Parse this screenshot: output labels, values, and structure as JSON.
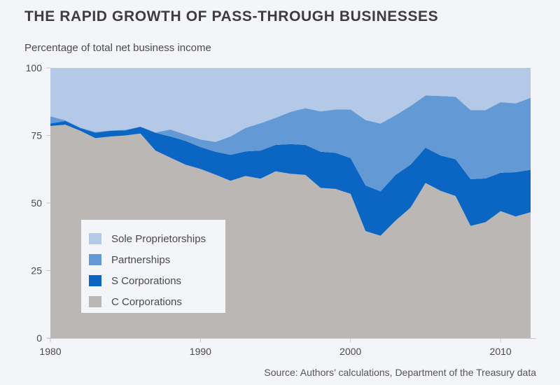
{
  "header": {
    "title": "THE RAPID GROWTH OF PASS-THROUGH BUSINESSES",
    "subtitle": "Percentage of total net business income"
  },
  "footer": {
    "source": "Source: Authors’ calculations, Department of the Treasury data"
  },
  "colors": {
    "background": "#f4f5f9",
    "sole_proprietorships": "#b4c8e8",
    "partnerships": "#6399d4",
    "s_corporations": "#0a66c2",
    "c_corporations": "#bbb7b5",
    "axis": "#c8c8cc"
  },
  "chart_data": {
    "type": "area",
    "stacked": true,
    "title": "THE RAPID GROWTH OF PASS-THROUGH BUSINESSES",
    "ylabel": "Percentage of total net business income",
    "xlabel": "",
    "xlim": [
      1980,
      2012
    ],
    "ylim": [
      0,
      100
    ],
    "x_ticks": [
      1980,
      1990,
      2000,
      2010
    ],
    "x_tick_labels": [
      "1980",
      "1990",
      "2000",
      "2010"
    ],
    "y_ticks": [
      0,
      25,
      50,
      75,
      100
    ],
    "y_tick_labels": [
      "0",
      "25",
      "50",
      "75",
      "100"
    ],
    "grid": false,
    "legend_position": "bottom-left (inside plot)",
    "x": [
      1980,
      1981,
      1982,
      1983,
      1984,
      1985,
      1986,
      1987,
      1988,
      1989,
      1990,
      1991,
      1992,
      1993,
      1994,
      1995,
      1996,
      1997,
      1998,
      1999,
      2000,
      2001,
      2002,
      2003,
      2004,
      2005,
      2006,
      2007,
      2008,
      2009,
      2010,
      2011,
      2012
    ],
    "series": [
      {
        "name": "C Corporations",
        "color_key": "c_corporations",
        "values": [
          78.5,
          79.0,
          76.7,
          74.0,
          74.6,
          75.0,
          75.7,
          69.4,
          66.8,
          64.2,
          62.6,
          60.5,
          58.2,
          60.0,
          59.0,
          61.7,
          60.8,
          60.4,
          55.6,
          55.2,
          53.4,
          39.6,
          37.9,
          43.5,
          48.3,
          57.4,
          54.5,
          52.6,
          41.5,
          42.9,
          47.0,
          45.0,
          46.6
        ]
      },
      {
        "name": "S Corporations",
        "color_key": "s_corporations",
        "values": [
          0.9,
          1.4,
          1.0,
          2.0,
          2.1,
          1.9,
          2.5,
          6.6,
          7.8,
          8.8,
          8.1,
          8.5,
          9.6,
          9.1,
          10.4,
          9.8,
          11.0,
          11.1,
          13.4,
          13.4,
          13.2,
          16.9,
          16.4,
          16.9,
          15.9,
          13.1,
          13.1,
          13.6,
          17.3,
          16.2,
          14.2,
          16.4,
          15.7
        ]
      },
      {
        "name": "Partnerships",
        "color_key": "partnerships",
        "values": [
          2.7,
          0.2,
          0.2,
          0.3,
          0.2,
          0.2,
          0.1,
          0.1,
          2.6,
          2.3,
          2.8,
          3.6,
          6.8,
          8.7,
          10.1,
          10.0,
          11.9,
          13.6,
          14.9,
          16.0,
          18.0,
          24.2,
          25.1,
          22.1,
          21.7,
          19.3,
          22.0,
          23.1,
          25.6,
          25.3,
          26.1,
          25.5,
          26.6
        ]
      },
      {
        "name": "Sole Proprietorships",
        "color_key": "sole_proprietorships",
        "values": [
          17.9,
          19.4,
          22.1,
          23.7,
          23.1,
          22.9,
          21.7,
          23.9,
          22.8,
          24.7,
          26.5,
          27.4,
          25.4,
          22.2,
          20.5,
          18.5,
          16.3,
          14.9,
          16.1,
          15.4,
          15.4,
          19.3,
          20.6,
          17.5,
          14.1,
          10.2,
          10.4,
          10.7,
          15.6,
          15.6,
          12.7,
          13.1,
          11.1
        ]
      }
    ],
    "legend": [
      "Sole Proprietorships",
      "Partnerships",
      "S Corporations",
      "C Corporations"
    ],
    "annotations": [
      "Source: Authors’ calculations, Department of the Treasury data"
    ]
  }
}
